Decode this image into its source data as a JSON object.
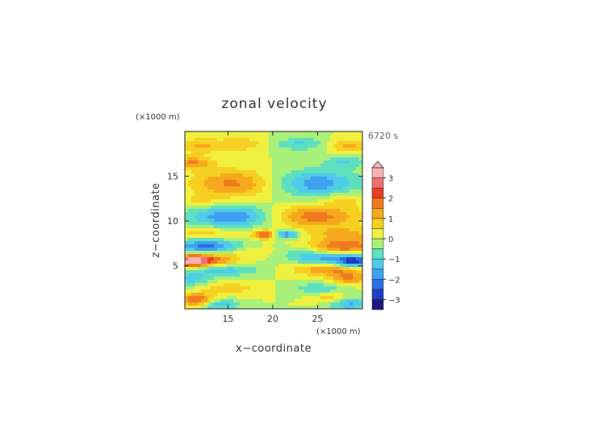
{
  "chart_data": {
    "type": "heatmap",
    "title": "zonal velocity",
    "xlabel": "x−coordinate",
    "ylabel": "z−coordinate",
    "x_unit": "(×1000 m)",
    "z_unit": "(×1000 m)",
    "time_label": "6720 s",
    "xlim": [
      10.2,
      30.0
    ],
    "ylim": [
      0.2,
      20.0
    ],
    "x_ticks": [
      15,
      20,
      25
    ],
    "y_ticks": [
      5,
      10,
      15
    ],
    "x_tick_labels": [
      "15",
      "20",
      "25"
    ],
    "y_tick_labels": [
      "5",
      "10",
      "15"
    ],
    "colorbar": {
      "levels": [
        -3.5,
        -3.0,
        -2.5,
        -2.0,
        -1.5,
        -1.0,
        -0.5,
        0.0,
        0.5,
        1.0,
        1.5,
        2.0,
        2.5,
        3.0,
        3.5
      ],
      "colors": [
        "#1a1a80",
        "#1e3fbf",
        "#2a6fe0",
        "#3fa0f0",
        "#4ecbe8",
        "#5ee0c0",
        "#a8f07a",
        "#f0f040",
        "#f6d020",
        "#f5a81e",
        "#f07a1e",
        "#e84020",
        "#f06e72",
        "#f8b2b2"
      ],
      "tick_values": [
        -3,
        -2,
        -1,
        0,
        1,
        2,
        3
      ],
      "tick_labels": [
        "−3",
        "−2",
        "−1",
        "0",
        "1",
        "2",
        "3"
      ],
      "extend": "max"
    },
    "blobs": [
      {
        "x": 12.0,
        "z": 18.4,
        "sx": 1.6,
        "sz": 0.6,
        "v": 1.1
      },
      {
        "x": 16.5,
        "z": 18.6,
        "sx": 1.8,
        "sz": 0.5,
        "v": 1.0
      },
      {
        "x": 23.0,
        "z": 18.6,
        "sx": 2.0,
        "sz": 0.5,
        "v": -1.1
      },
      {
        "x": 28.5,
        "z": 18.4,
        "sx": 1.5,
        "sz": 0.5,
        "v": 1.2
      },
      {
        "x": 11.0,
        "z": 16.5,
        "sx": 1.6,
        "sz": 0.5,
        "v": 1.5
      },
      {
        "x": 28.0,
        "z": 16.6,
        "sx": 1.5,
        "sz": 0.5,
        "v": -1.0
      },
      {
        "x": 15.5,
        "z": 14.2,
        "sx": 3.2,
        "sz": 1.1,
        "v": 1.6
      },
      {
        "x": 25.0,
        "z": 14.2,
        "sx": 3.3,
        "sz": 1.1,
        "v": -1.8
      },
      {
        "x": 12.0,
        "z": 12.2,
        "sx": 1.6,
        "sz": 0.5,
        "v": 0.6
      },
      {
        "x": 28.0,
        "z": 12.4,
        "sx": 1.6,
        "sz": 0.6,
        "v": 0.8
      },
      {
        "x": 15.5,
        "z": 10.5,
        "sx": 3.5,
        "sz": 0.9,
        "v": -2.0
      },
      {
        "x": 24.5,
        "z": 10.5,
        "sx": 3.6,
        "sz": 0.9,
        "v": 1.8
      },
      {
        "x": 12.5,
        "z": 8.6,
        "sx": 2.5,
        "sz": 0.5,
        "v": 0.9
      },
      {
        "x": 19.0,
        "z": 8.5,
        "sx": 0.9,
        "sz": 0.35,
        "v": 2.2
      },
      {
        "x": 21.5,
        "z": 8.5,
        "sx": 0.9,
        "sz": 0.35,
        "v": -2.0
      },
      {
        "x": 28.0,
        "z": 8.6,
        "sx": 2.5,
        "sz": 0.5,
        "v": 1.1
      },
      {
        "x": 12.5,
        "z": 7.2,
        "sx": 2.6,
        "sz": 0.6,
        "v": -2.2
      },
      {
        "x": 28.0,
        "z": 7.2,
        "sx": 2.6,
        "sz": 0.6,
        "v": 2.0
      },
      {
        "x": 17.5,
        "z": 6.6,
        "sx": 1.8,
        "sz": 0.4,
        "v": 0.5
      },
      {
        "x": 23.0,
        "z": 6.6,
        "sx": 1.8,
        "sz": 0.4,
        "v": -0.5
      },
      {
        "x": 12.0,
        "z": 5.6,
        "sx": 2.6,
        "sz": 0.55,
        "v": 2.6
      },
      {
        "x": 11.0,
        "z": 5.5,
        "sx": 1.0,
        "sz": 0.45,
        "v": 1.4
      },
      {
        "x": 29.0,
        "z": 5.5,
        "sx": 1.3,
        "sz": 0.5,
        "v": -2.6
      },
      {
        "x": 25.5,
        "z": 5.8,
        "sx": 2.5,
        "sz": 0.5,
        "v": -1.6
      },
      {
        "x": 14.5,
        "z": 4.6,
        "sx": 2.8,
        "sz": 0.5,
        "v": -1.4
      },
      {
        "x": 26.0,
        "z": 4.6,
        "sx": 2.8,
        "sz": 0.5,
        "v": 1.4
      },
      {
        "x": 11.0,
        "z": 3.5,
        "sx": 1.5,
        "sz": 0.6,
        "v": -1.2
      },
      {
        "x": 28.5,
        "z": 3.6,
        "sx": 1.6,
        "sz": 0.6,
        "v": 1.5
      },
      {
        "x": 15.0,
        "z": 2.5,
        "sx": 2.5,
        "sz": 0.5,
        "v": 0.8
      },
      {
        "x": 25.5,
        "z": 2.5,
        "sx": 2.5,
        "sz": 0.5,
        "v": -0.9
      },
      {
        "x": 11.5,
        "z": 1.2,
        "sx": 1.4,
        "sz": 0.5,
        "v": 2.1
      },
      {
        "x": 14.0,
        "z": 0.7,
        "sx": 1.5,
        "sz": 0.4,
        "v": -1.5
      },
      {
        "x": 28.5,
        "z": 0.8,
        "sx": 1.6,
        "sz": 0.5,
        "v": -1.6
      },
      {
        "x": 26.5,
        "z": 1.4,
        "sx": 1.4,
        "sz": 0.4,
        "v": 1.0
      }
    ]
  }
}
